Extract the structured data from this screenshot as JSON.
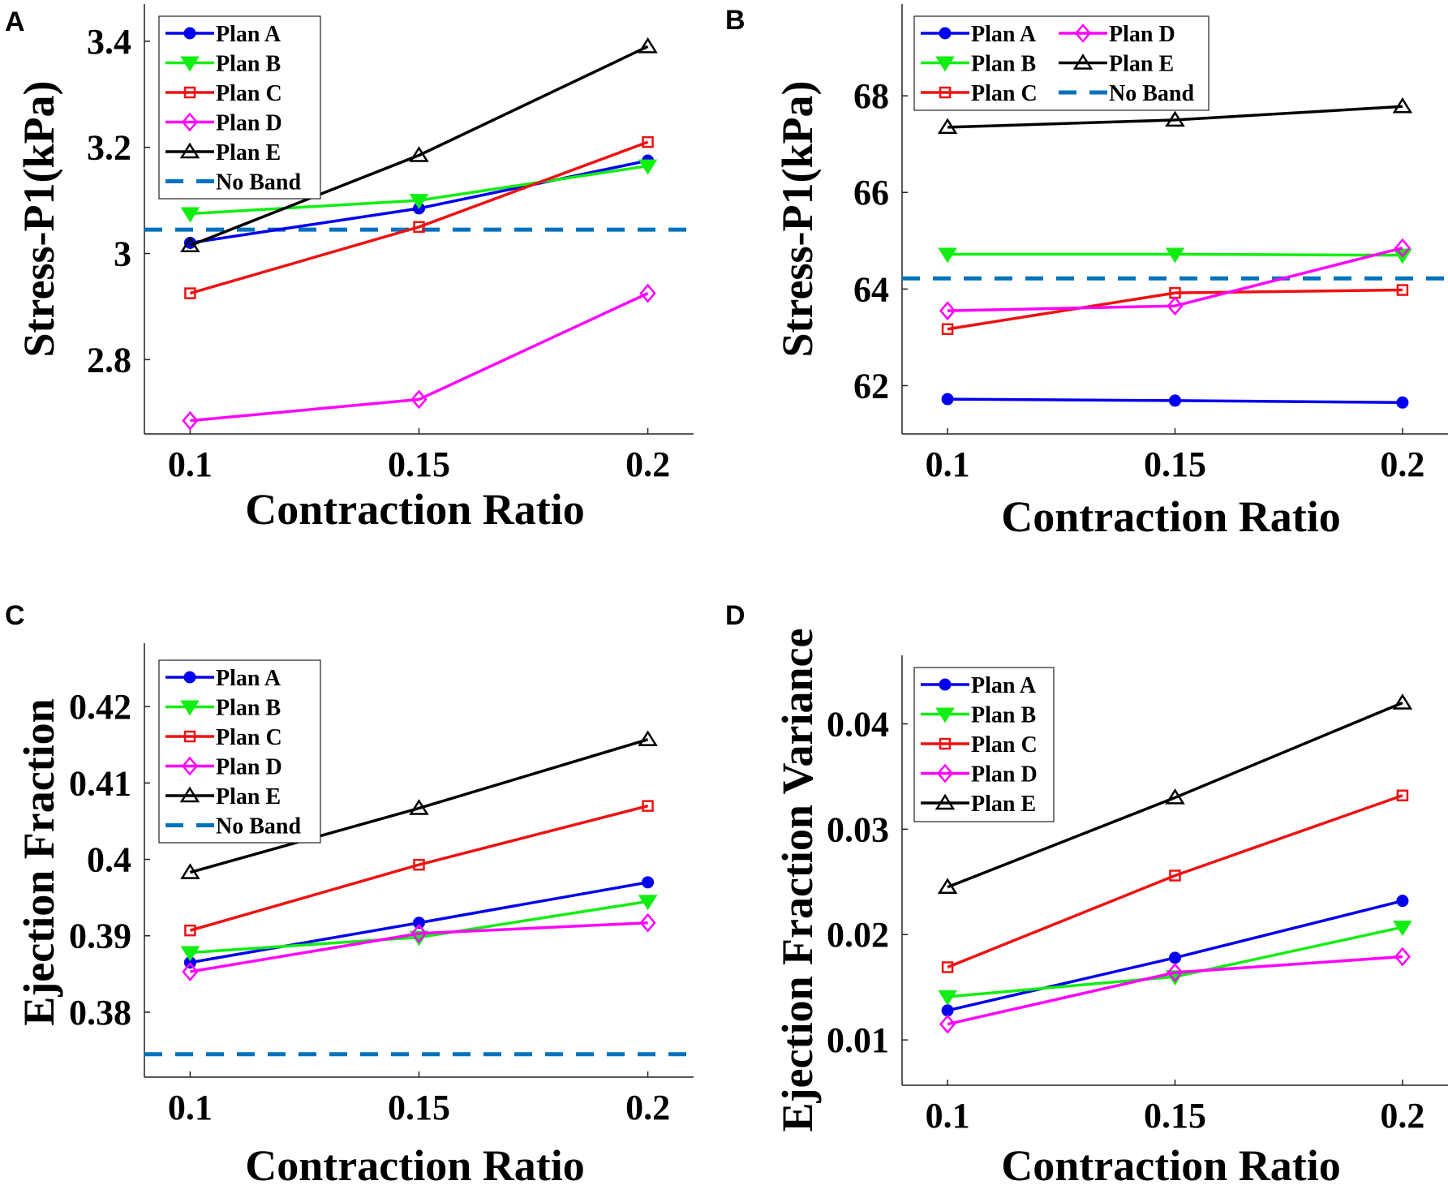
{
  "chart_data": [
    {
      "panel": "A",
      "type": "line",
      "xlabel": "Contraction Ratio",
      "ylabel": "Stress-P1(kPa)",
      "x": [
        0.1,
        0.15,
        0.2
      ],
      "xticks": [
        "0.1",
        "0.15",
        "0.2"
      ],
      "xlim": [
        0.09,
        0.21
      ],
      "ylim": [
        2.66,
        3.47
      ],
      "yticks": [
        2.8,
        3.0,
        3.2,
        3.4
      ],
      "ytick_labels": [
        "2.8",
        "3",
        "3.2",
        "3.4"
      ],
      "series": [
        {
          "name": "Plan A",
          "values": [
            3.02,
            3.085,
            3.175
          ]
        },
        {
          "name": "Plan B",
          "values": [
            3.075,
            3.1,
            3.165
          ]
        },
        {
          "name": "Plan C",
          "values": [
            2.925,
            3.05,
            3.21
          ]
        },
        {
          "name": "Plan D",
          "values": [
            2.685,
            2.725,
            2.925
          ]
        },
        {
          "name": "Plan E",
          "values": [
            3.015,
            3.185,
            3.39
          ]
        }
      ],
      "reference": {
        "name": "No Band",
        "value": 3.045
      },
      "legend": {
        "placement": "top-left",
        "columns": 1
      }
    },
    {
      "panel": "B",
      "type": "line",
      "xlabel": "Contraction Ratio",
      "ylabel": "Stress-P1(kPa)",
      "x": [
        0.1,
        0.15,
        0.2
      ],
      "xticks": [
        "0.1",
        "0.15",
        "0.2"
      ],
      "xlim": [
        0.09,
        0.21
      ],
      "ylim": [
        61.0,
        69.9
      ],
      "yticks": [
        62,
        64,
        66,
        68
      ],
      "ytick_labels": [
        "62",
        "64",
        "66",
        "68"
      ],
      "series": [
        {
          "name": "Plan A",
          "values": [
            61.72,
            61.69,
            61.65
          ]
        },
        {
          "name": "Plan B",
          "values": [
            64.72,
            64.72,
            64.7
          ]
        },
        {
          "name": "Plan C",
          "values": [
            63.17,
            63.92,
            63.98
          ]
        },
        {
          "name": "Plan D",
          "values": [
            63.55,
            63.65,
            64.85
          ]
        },
        {
          "name": "Plan E",
          "values": [
            67.35,
            67.5,
            67.78
          ]
        }
      ],
      "reference": {
        "name": "No Band",
        "value": 64.22
      },
      "legend": {
        "placement": "top-left",
        "columns": 2
      }
    },
    {
      "panel": "C",
      "type": "line",
      "xlabel": "Contraction Ratio",
      "ylabel": "Ejection Fraction",
      "x": [
        0.1,
        0.15,
        0.2
      ],
      "xticks": [
        "0.1",
        "0.15",
        "0.2"
      ],
      "xlim": [
        0.09,
        0.21
      ],
      "ylim": [
        0.3715,
        0.4283
      ],
      "yticks": [
        0.38,
        0.39,
        0.4,
        0.41,
        0.42
      ],
      "ytick_labels": [
        "0.38",
        "0.39",
        "0.4",
        "0.41",
        "0.42"
      ],
      "series": [
        {
          "name": "Plan A",
          "values": [
            0.3865,
            0.3917,
            0.397
          ]
        },
        {
          "name": "Plan B",
          "values": [
            0.3878,
            0.3898,
            0.3945
          ]
        },
        {
          "name": "Plan C",
          "values": [
            0.3907,
            0.3993,
            0.407
          ]
        },
        {
          "name": "Plan D",
          "values": [
            0.3853,
            0.3903,
            0.3917
          ]
        },
        {
          "name": "Plan E",
          "values": [
            0.3983,
            0.4067,
            0.4157
          ]
        }
      ],
      "reference": {
        "name": "No Band",
        "value": 0.3745
      },
      "legend": {
        "placement": "top-left",
        "columns": 1
      }
    },
    {
      "panel": "D",
      "type": "line",
      "xlabel": "Contraction Ratio",
      "ylabel": "Ejection Fraction Variance",
      "x": [
        0.1,
        0.15,
        0.2
      ],
      "xticks": [
        "0.1",
        "0.15",
        "0.2"
      ],
      "xlim": [
        0.09,
        0.21
      ],
      "ylim": [
        0.0057,
        0.0465
      ],
      "yticks": [
        0.01,
        0.02,
        0.03,
        0.04
      ],
      "ytick_labels": [
        "0.01",
        "0.02",
        "0.03",
        "0.04"
      ],
      "series": [
        {
          "name": "Plan A",
          "values": [
            0.0128,
            0.0178,
            0.0232
          ]
        },
        {
          "name": "Plan B",
          "values": [
            0.0141,
            0.016,
            0.0207
          ]
        },
        {
          "name": "Plan C",
          "values": [
            0.0169,
            0.0256,
            0.0332
          ]
        },
        {
          "name": "Plan D",
          "values": [
            0.0115,
            0.0164,
            0.0179
          ]
        },
        {
          "name": "Plan E",
          "values": [
            0.0245,
            0.033,
            0.042
          ]
        }
      ],
      "reference": null,
      "legend": {
        "placement": "top-left",
        "columns": 1
      }
    }
  ],
  "series_styles": [
    {
      "name": "Plan A",
      "color": "#0000ee",
      "marker": "circle"
    },
    {
      "name": "Plan B",
      "color": "#11ee11",
      "marker": "triangle-down"
    },
    {
      "name": "Plan C",
      "color": "#ee1111",
      "marker": "square"
    },
    {
      "name": "Plan D",
      "color": "#ff00ff",
      "marker": "diamond"
    },
    {
      "name": "Plan E",
      "color": "#000000",
      "marker": "triangle-up"
    }
  ],
  "reference_style": {
    "color": "#0072bd",
    "dash": "dashed"
  }
}
